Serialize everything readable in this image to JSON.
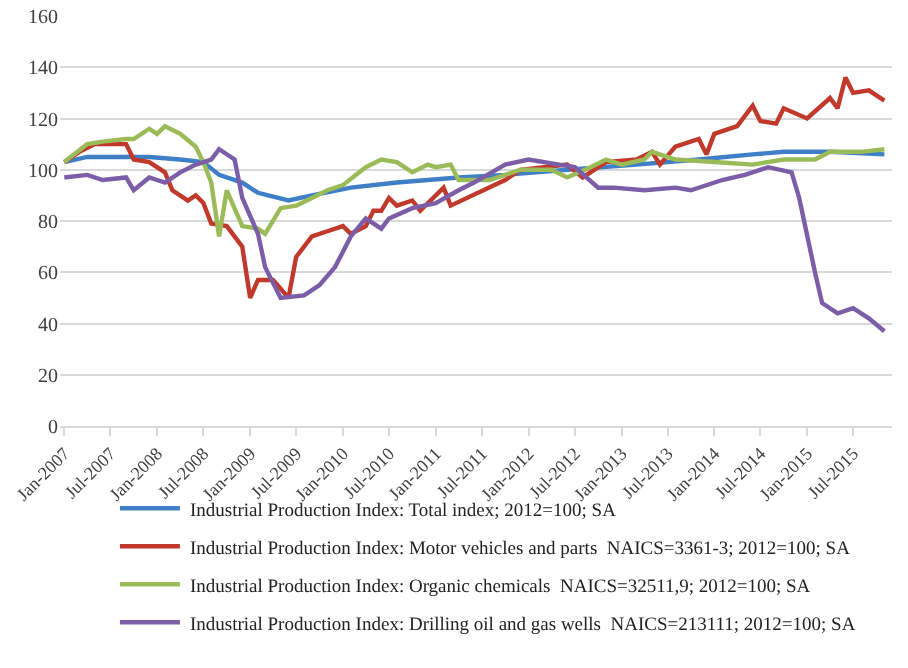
{
  "chart_data": {
    "type": "line",
    "legend": "bottom",
    "grid": "y",
    "marker": "none",
    "line_style": "solid",
    "ylim": [
      0,
      160
    ],
    "yticks": [
      0,
      20,
      40,
      60,
      80,
      100,
      120,
      140,
      160
    ],
    "xlim": [
      "2006-12-15",
      "2015-12-01"
    ],
    "xticks": [
      {
        "value": "2007-01",
        "label": "Jan-2007"
      },
      {
        "value": "2007-07",
        "label": "Jul-2007"
      },
      {
        "value": "2008-01",
        "label": "Jan-2008"
      },
      {
        "value": "2008-07",
        "label": "Jul-2008"
      },
      {
        "value": "2009-01",
        "label": "Jan-2009"
      },
      {
        "value": "2009-07",
        "label": "Jul-2009"
      },
      {
        "value": "2010-01",
        "label": "Jan-2010"
      },
      {
        "value": "2010-07",
        "label": "Jul-2010"
      },
      {
        "value": "2011-01",
        "label": "Jan-2011"
      },
      {
        "value": "2011-07",
        "label": "Jul-2011"
      },
      {
        "value": "2012-01",
        "label": "Jan-2012"
      },
      {
        "value": "2012-07",
        "label": "Jul-2012"
      },
      {
        "value": "2013-01",
        "label": "Jan-2013"
      },
      {
        "value": "2013-07",
        "label": "Jul-2013"
      },
      {
        "value": "2014-01",
        "label": "Jan-2014"
      },
      {
        "value": "2014-07",
        "label": "Jul-2014"
      },
      {
        "value": "2015-01",
        "label": "Jan-2015"
      },
      {
        "value": "2015-07",
        "label": "Jul-2015"
      }
    ],
    "series": [
      {
        "name": "Industrial Production Index: Total index; 2012=100; SA",
        "color": "#3f7fc8",
        "x": [
          "2007-01",
          "2007-04",
          "2007-12",
          "2008-04",
          "2008-07",
          "2008-09",
          "2008-12",
          "2009-02",
          "2009-06",
          "2009-09",
          "2010-02",
          "2010-08",
          "2011-04",
          "2011-10",
          "2012-06",
          "2013-03",
          "2013-11",
          "2014-06",
          "2014-10",
          "2015-04",
          "2015-11"
        ],
        "values": [
          103,
          105,
          105,
          104,
          103,
          98,
          95,
          91,
          88,
          90,
          93,
          95,
          97,
          98,
          100,
          102,
          104,
          106,
          107,
          107,
          106
        ]
      },
      {
        "name": "Industrial Production Index: Motor vehicles and parts  NAICS=3361-3; 2012=100; SA",
        "color": "#c0392b",
        "x": [
          "2007-01",
          "2007-03",
          "2007-05",
          "2007-07",
          "2007-09",
          "2007-10",
          "2007-12",
          "2008-02",
          "2008-03",
          "2008-05",
          "2008-06",
          "2008-07",
          "2008-08",
          "2008-10",
          "2008-12",
          "2009-01",
          "2009-02",
          "2009-04",
          "2009-06",
          "2009-07",
          "2009-09",
          "2009-11",
          "2010-01",
          "2010-02",
          "2010-04",
          "2010-05",
          "2010-06",
          "2010-07",
          "2010-08",
          "2010-10",
          "2010-11",
          "2011-02",
          "2011-03",
          "2011-10",
          "2011-12",
          "2012-06",
          "2012-08",
          "2012-11",
          "2013-03",
          "2013-05",
          "2013-06",
          "2013-08",
          "2013-11",
          "2013-12",
          "2014-01",
          "2014-04",
          "2014-06",
          "2014-07",
          "2014-09",
          "2014-10",
          "2015-01",
          "2015-04",
          "2015-05",
          "2015-06",
          "2015-07",
          "2015-09",
          "2015-11"
        ],
        "values": [
          103,
          107,
          110,
          110,
          110,
          104,
          103,
          99,
          92,
          88,
          90,
          87,
          79,
          78,
          70,
          50,
          57,
          57,
          50,
          66,
          74,
          76,
          78,
          75,
          78,
          84,
          84,
          89,
          86,
          88,
          84,
          93,
          86,
          96,
          100,
          102,
          97,
          103,
          104,
          107,
          102,
          109,
          112,
          106,
          114,
          117,
          125,
          119,
          118,
          124,
          120,
          128,
          124,
          136,
          130,
          131,
          127
        ]
      },
      {
        "name": "Industrial Production Index: Organic chemicals  NAICS=32511,9; 2012=100; SA",
        "color": "#9bbb59",
        "x": [
          "2007-01",
          "2007-04",
          "2007-06",
          "2007-09",
          "2007-10",
          "2007-12",
          "2008-01",
          "2008-02",
          "2008-04",
          "2008-06",
          "2008-07",
          "2008-08",
          "2008-09",
          "2008-10",
          "2008-12",
          "2009-02",
          "2009-03",
          "2009-05",
          "2009-07",
          "2009-09",
          "2009-11",
          "2010-01",
          "2010-04",
          "2010-06",
          "2010-08",
          "2010-10",
          "2010-12",
          "2011-01",
          "2011-03",
          "2011-04",
          "2011-08",
          "2011-10",
          "2011-12",
          "2012-04",
          "2012-06",
          "2012-09",
          "2012-11",
          "2013-01",
          "2013-04",
          "2013-05",
          "2013-08",
          "2014-01",
          "2014-06",
          "2014-10",
          "2015-02",
          "2015-04",
          "2015-08",
          "2015-11"
        ],
        "values": [
          103,
          110,
          111,
          112,
          112,
          116,
          114,
          117,
          114,
          109,
          103,
          95,
          74,
          92,
          78,
          77,
          75,
          85,
          86,
          89,
          92,
          94,
          101,
          104,
          103,
          99,
          102,
          101,
          102,
          96,
          96,
          98,
          100,
          100,
          97,
          101,
          104,
          102,
          104,
          107,
          104,
          103,
          102,
          104,
          104,
          107,
          107,
          108
        ]
      },
      {
        "name": "Industrial Production Index: Drilling oil and gas wells  NAICS=213111; 2012=100; SA",
        "color": "#7b5ea7",
        "x": [
          "2007-01",
          "2007-04",
          "2007-06",
          "2007-09",
          "2007-10",
          "2007-12",
          "2008-02",
          "2008-04",
          "2008-06",
          "2008-08",
          "2008-09",
          "2008-11",
          "2008-12",
          "2009-02",
          "2009-03",
          "2009-05",
          "2009-08",
          "2009-10",
          "2009-12",
          "2010-02",
          "2010-04",
          "2010-06",
          "2010-07",
          "2010-10",
          "2011-01",
          "2011-04",
          "2011-06",
          "2011-10",
          "2012-01",
          "2012-05",
          "2012-07",
          "2012-10",
          "2012-12",
          "2013-04",
          "2013-08",
          "2013-10",
          "2014-02",
          "2014-05",
          "2014-08",
          "2014-11",
          "2014-12",
          "2015-02",
          "2015-03",
          "2015-05",
          "2015-07",
          "2015-09",
          "2015-11"
        ],
        "values": [
          97,
          98,
          96,
          97,
          92,
          97,
          95,
          99,
          102,
          104,
          108,
          104,
          89,
          75,
          62,
          50,
          51,
          55,
          62,
          74,
          81,
          77,
          81,
          85,
          87,
          92,
          95,
          102,
          104,
          102,
          101,
          93,
          93,
          92,
          93,
          92,
          96,
          98,
          101,
          99,
          89,
          60,
          48,
          44,
          46,
          42,
          37
        ]
      }
    ]
  }
}
